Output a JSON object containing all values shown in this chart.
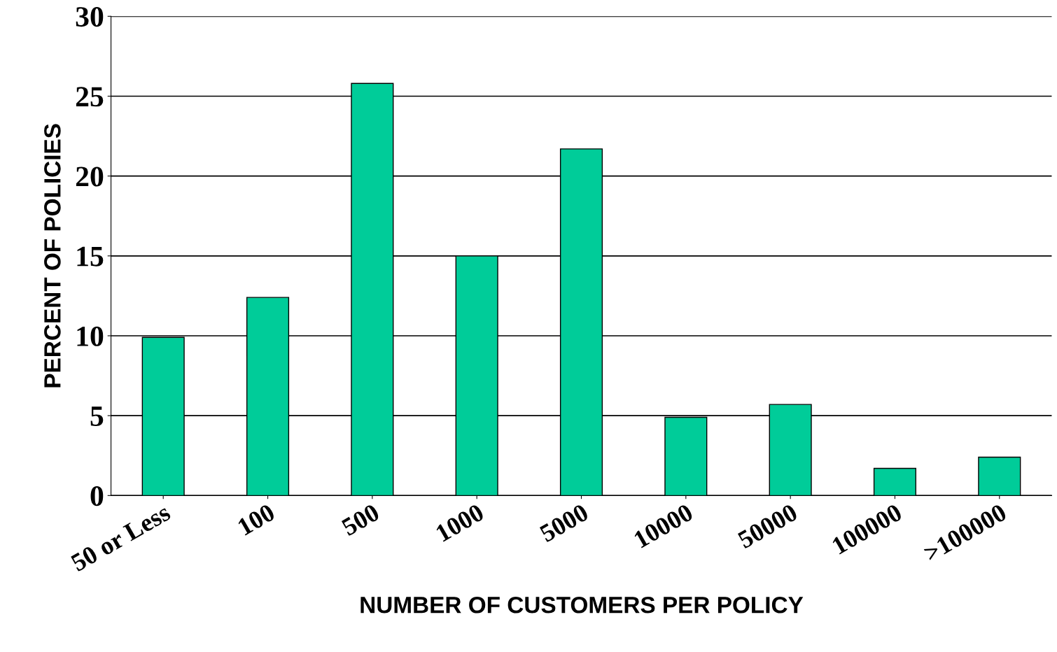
{
  "chart_data": {
    "type": "bar",
    "xlabel": "NUMBER OF CUSTOMERS PER POLICY",
    "ylabel": "PERCENT OF POLICIES",
    "categories": [
      "50 or Less",
      "100",
      "500",
      "1000",
      "5000",
      "10000",
      "50000",
      "100000",
      ">100000"
    ],
    "values": [
      9.9,
      12.4,
      25.8,
      15.0,
      21.7,
      4.9,
      5.7,
      1.7,
      2.4
    ],
    "color": "#00cc99",
    "ylim": [
      0,
      30
    ],
    "yticks": [
      0,
      5,
      10,
      15,
      20,
      25,
      30
    ],
    "grid": "y"
  }
}
